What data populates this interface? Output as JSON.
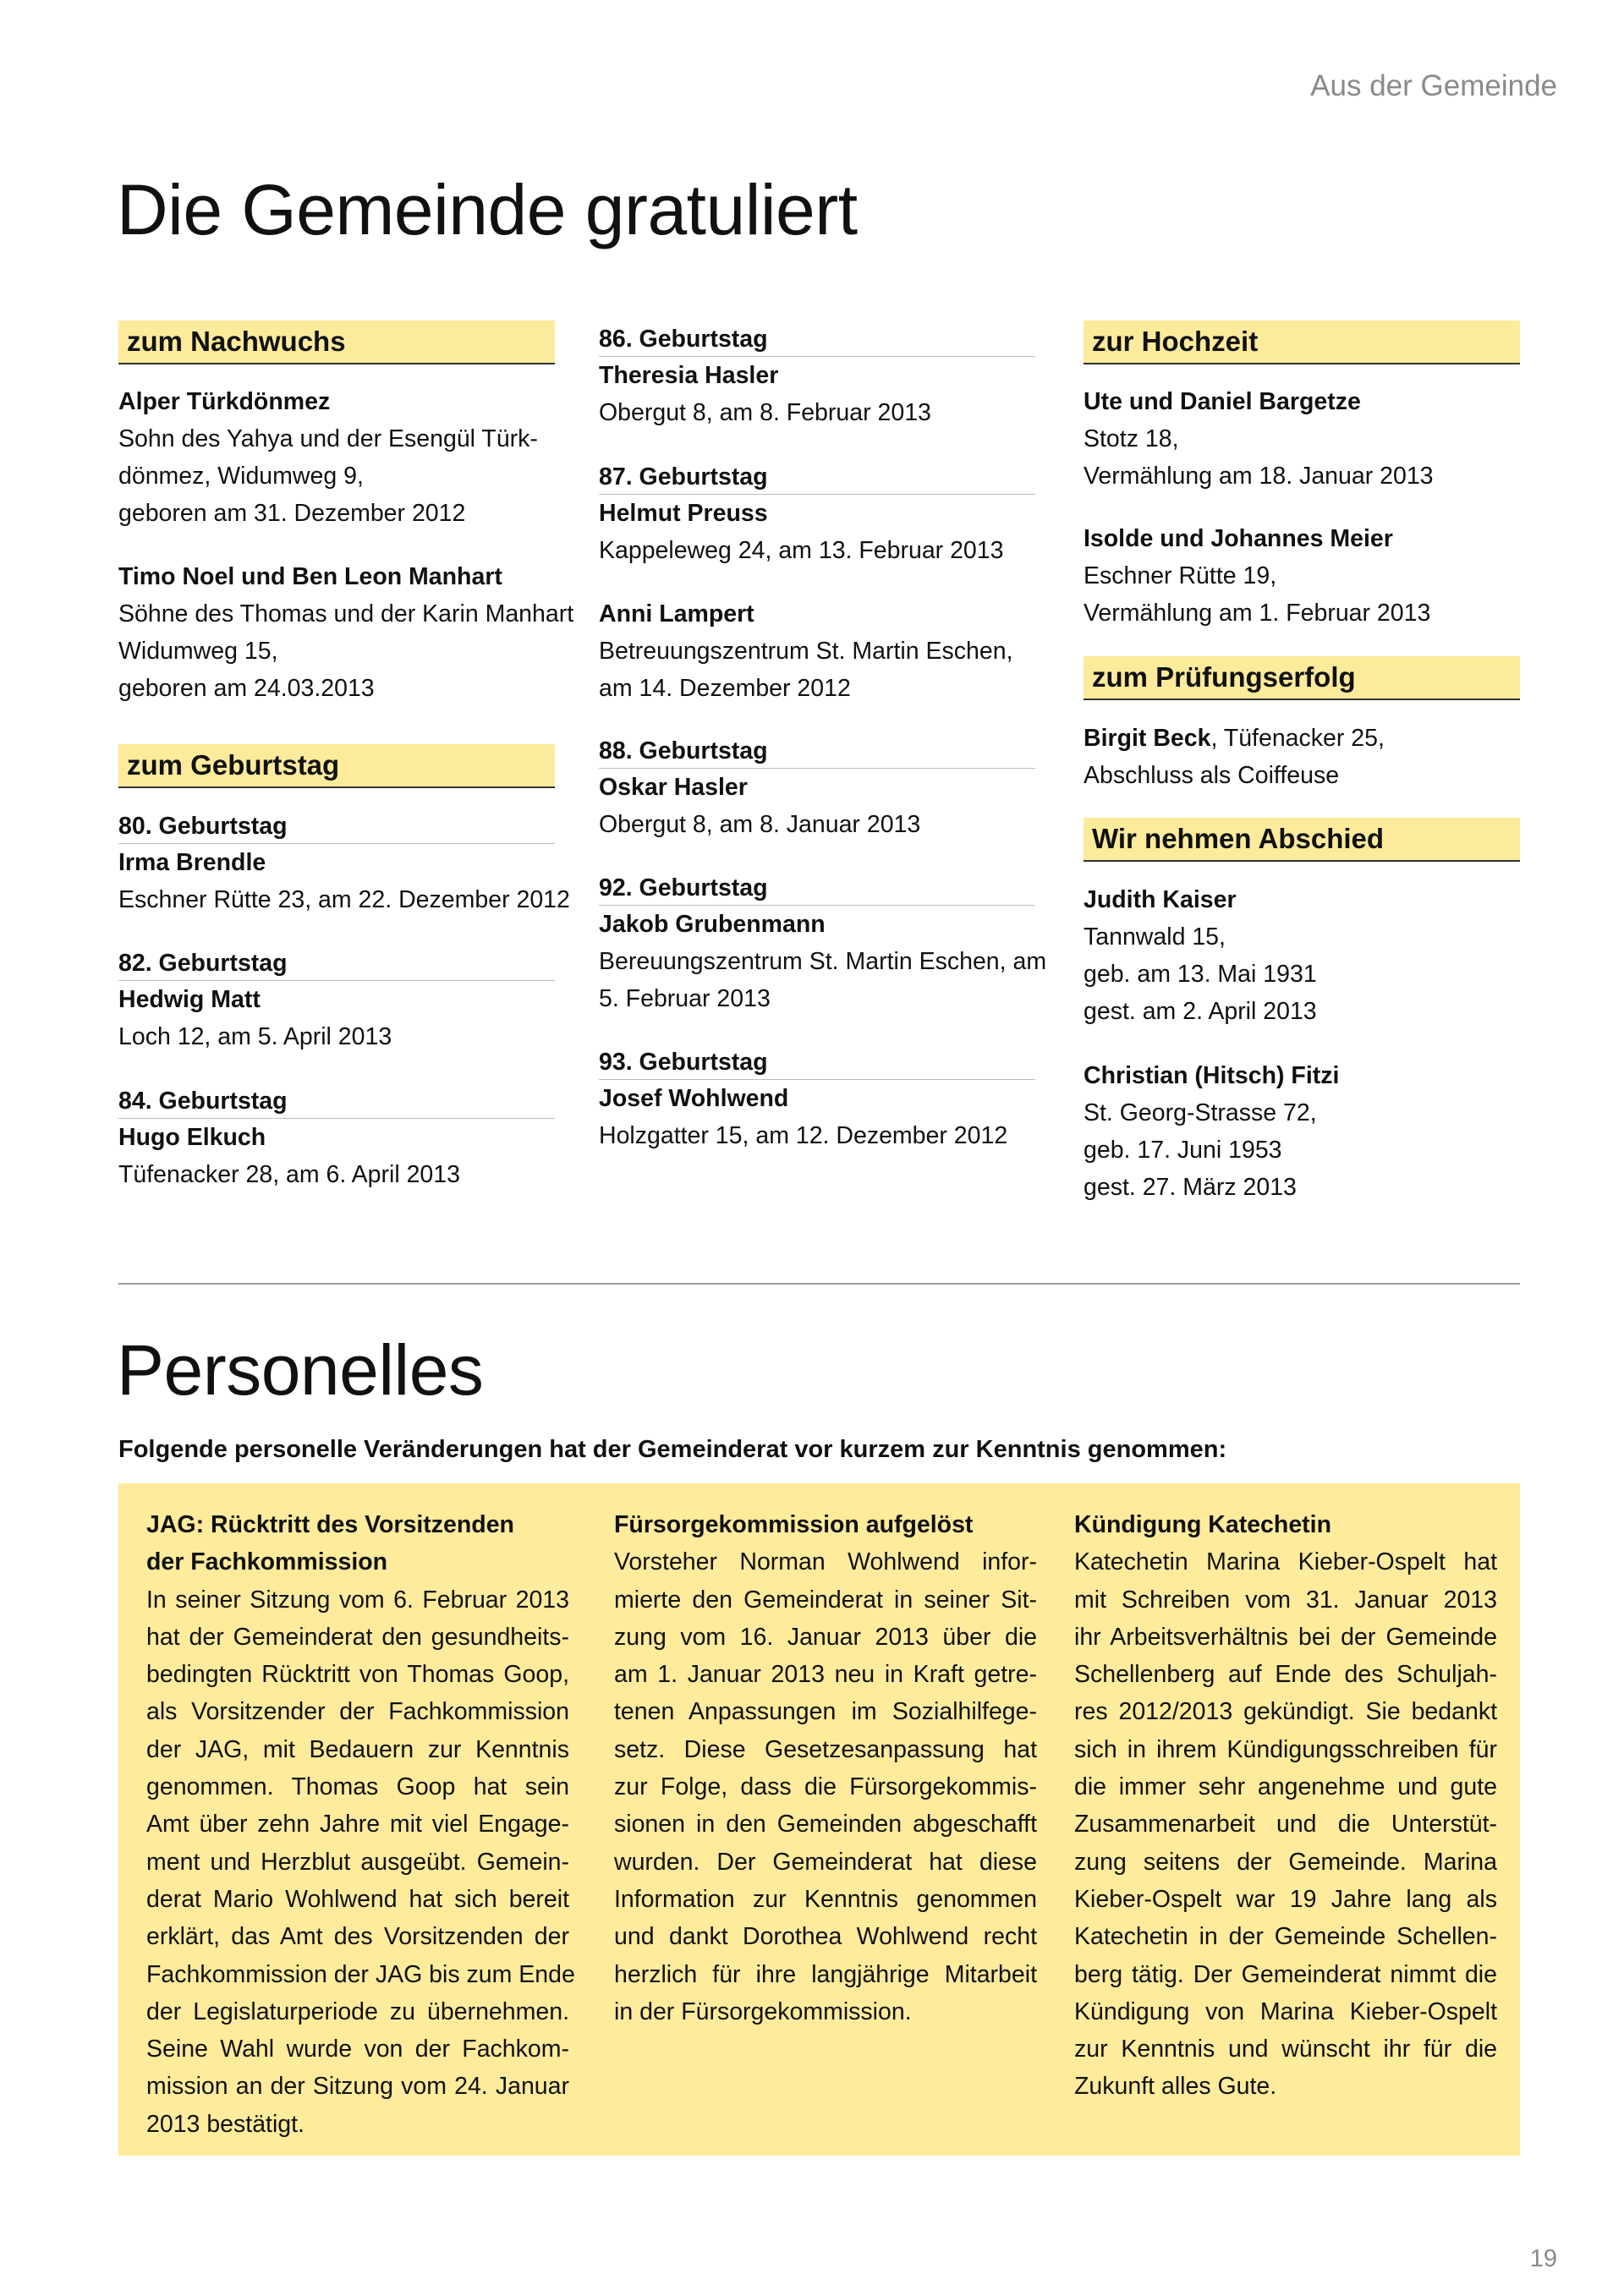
{
  "header": {
    "section": "Aus der Gemeinde"
  },
  "gratuliert": {
    "title": "Die Gemeinde gratuliert",
    "columns": [
      [
        {
          "type": "heading",
          "text": "zum Nachwuchs"
        },
        {
          "type": "entry",
          "name": "Alper Türkdönmez",
          "lines": [
            "Sohn des Yahya und der Esengül Türk-",
            "dönmez, Widumweg 9,",
            "geboren am 31. Dezember 2012"
          ]
        },
        {
          "type": "entry",
          "name": "Timo Noel und Ben Leon Manhart",
          "lines": [
            "Söhne des Thomas und der Karin Manhart",
            "Widumweg 15,",
            "geboren am 24.03.2013"
          ]
        },
        {
          "type": "heading",
          "text": "zum Geburtstag"
        },
        {
          "type": "birthday",
          "heading": "80. Geburtstag",
          "name": "Irma Brendle",
          "lines": [
            "Eschner Rütte 23, am 22. Dezember 2012"
          ]
        },
        {
          "type": "birthday",
          "heading": "82. Geburtstag",
          "name": "Hedwig Matt",
          "lines": [
            "Loch 12, am 5. April 2013"
          ]
        },
        {
          "type": "birthday",
          "heading": "84. Geburtstag",
          "name": "Hugo Elkuch",
          "lines": [
            "Tüfenacker 28, am 6. April 2013"
          ]
        }
      ],
      [
        {
          "type": "birthday",
          "heading": "86. Geburtstag",
          "name": "Theresia Hasler",
          "lines": [
            "Obergut 8, am 8. Februar 2013"
          ]
        },
        {
          "type": "birthday",
          "heading": "87. Geburtstag",
          "name": "Helmut Preuss",
          "lines": [
            "Kappeleweg 24, am 13. Februar 2013"
          ]
        },
        {
          "type": "entry",
          "name": "Anni Lampert",
          "lines": [
            "Betreuungszentrum St. Martin Eschen,",
            "am 14. Dezember 2012"
          ]
        },
        {
          "type": "birthday",
          "heading": "88. Geburtstag",
          "name": "Oskar Hasler",
          "lines": [
            "Obergut 8, am 8. Januar 2013"
          ]
        },
        {
          "type": "birthday",
          "heading": "92. Geburtstag",
          "name": "Jakob Grubenmann",
          "lines": [
            "Bereuungszentrum St. Martin Eschen, am",
            "5. Februar 2013"
          ]
        },
        {
          "type": "birthday",
          "heading": "93. Geburtstag",
          "name": "Josef Wohlwend",
          "lines": [
            "Holzgatter 15, am 12. Dezember 2012"
          ]
        }
      ],
      [
        {
          "type": "heading",
          "text": "zur Hochzeit"
        },
        {
          "type": "entry",
          "name": "Ute und Daniel Bargetze",
          "lines": [
            "Stotz 18,",
            "Vermählung am 18. Januar 2013"
          ]
        },
        {
          "type": "entry",
          "name": "Isolde und Johannes Meier",
          "lines": [
            "Eschner Rütte 19,",
            "Vermählung am 1. Februar 2013"
          ]
        },
        {
          "type": "heading",
          "text": "zum Prüfungserfolg"
        },
        {
          "type": "inline",
          "name": "Birgit Beck",
          "rest": ", Tüfenacker 25,",
          "lines": [
            "Abschluss als Coiffeuse"
          ]
        },
        {
          "type": "heading",
          "text": "Wir nehmen Abschied"
        },
        {
          "type": "entry",
          "name": "Judith Kaiser",
          "lines": [
            "Tannwald 15,",
            "geb. am 13. Mai 1931",
            "gest. am 2. April 2013"
          ]
        },
        {
          "type": "entry",
          "name": "Christian (Hitsch) Fitzi",
          "lines": [
            "St. Georg-Strasse 72,",
            "geb. 17. Juni 1953",
            "gest. 27. März 2013"
          ]
        }
      ]
    ]
  },
  "personelles": {
    "title": "Personelles",
    "intro": "Folgende personelle Veränderungen hat der Gemeinderat vor kurzem zur Kenntnis genommen:",
    "articles": [
      {
        "title_lines": [
          "JAG: Rücktritt des Vorsitzenden",
          "der Fachkommission"
        ],
        "lines": [
          "In seiner Sitzung vom 6. Februar 2013",
          "hat der Gemeinderat den gesundheits-",
          "bedingten Rücktritt von Thomas Goop,",
          "als Vorsitzender der Fachkommission",
          "der JAG, mit Bedauern zur Kenntnis",
          "genommen. Thomas Goop hat sein",
          "Amt über zehn Jahre mit viel Engage-",
          "ment und Herzblut ausgeübt. Gemein-",
          "derat Mario Wohlwend hat sich bereit",
          "erklärt, das Amt des Vorsitzenden der",
          "Fachkommission der JAG bis zum Ende",
          "der Legislaturperiode zu übernehmen.",
          "Seine Wahl wurde von der Fachkom-",
          "mission an der Sitzung vom 24. Januar",
          "2013 bestätigt."
        ]
      },
      {
        "title_lines": [
          "Fürsorgekommission aufgelöst"
        ],
        "lines": [
          "Vorsteher Norman Wohlwend infor-",
          "mierte den Gemeinderat in seiner Sit-",
          "zung vom 16. Januar 2013 über die",
          "am 1. Januar 2013 neu in Kraft getre-",
          "tenen Anpassungen im Sozialhilfege-",
          "setz. Diese Gesetzesanpassung hat",
          "zur Folge, dass die Fürsorgekommis-",
          "sionen in den Gemeinden abgeschafft",
          "wurden. Der Gemeinderat hat diese",
          "Information zur Kenntnis genommen",
          "und dankt Dorothea Wohlwend recht",
          "herzlich für ihre langjährige Mitarbeit",
          "in der Fürsorgekommission."
        ]
      },
      {
        "title_lines": [
          "Kündigung Katechetin"
        ],
        "lines": [
          "Katechetin Marina Kieber-Ospelt hat",
          "mit Schreiben vom 31. Januar 2013",
          "ihr Arbeitsverhältnis bei der Gemeinde",
          "Schellenberg auf Ende des Schuljah-",
          "res 2012/2013 gekündigt. Sie bedankt",
          "sich in ihrem Kündigungsschreiben für",
          "die immer sehr angenehme und gute",
          "Zusammenarbeit und die Unterstüt-",
          "zung seitens der Gemeinde. Marina",
          "Kieber-Ospelt war 19 Jahre lang als",
          "Katechetin in der Gemeinde Schellen-",
          "berg tätig. Der Gemeinderat nimmt die",
          "Kündigung von Marina Kieber-Ospelt",
          "zur Kenntnis und wünscht ihr für die",
          "Zukunft alles Gute."
        ]
      }
    ]
  },
  "footer": {
    "page_number": "19"
  },
  "colors": {
    "highlight": "#feeb9c",
    "text": "#111111",
    "muted": "#8a8a8a"
  }
}
